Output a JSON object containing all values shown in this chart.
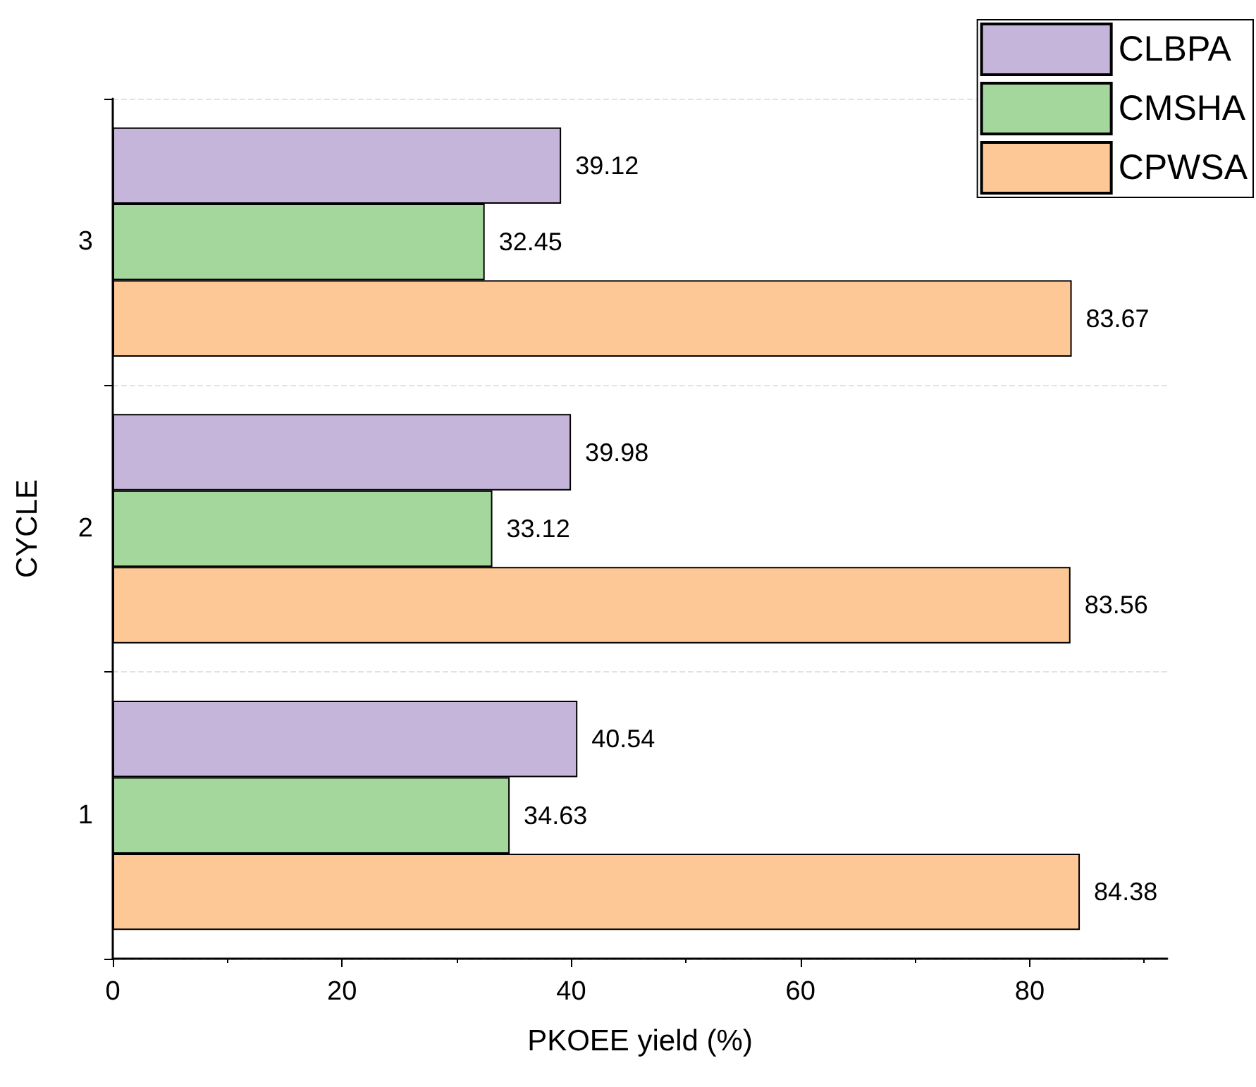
{
  "chart_data": {
    "type": "bar",
    "orientation": "horizontal",
    "xlabel": "PKOEE yield (%)",
    "ylabel": "CYCLE",
    "categories": [
      "3",
      "2",
      "1"
    ],
    "series": [
      {
        "name": "CLBPA",
        "color": "#c5b5da",
        "values": [
          39.12,
          39.98,
          40.54
        ]
      },
      {
        "name": "CMSHA",
        "color": "#a3d79c",
        "values": [
          32.45,
          33.12,
          34.63
        ]
      },
      {
        "name": "CPWSA",
        "color": "#fdc896",
        "values": [
          83.67,
          83.56,
          84.38
        ]
      }
    ],
    "xlim": [
      0,
      92
    ],
    "xticks": [
      0,
      20,
      40,
      60,
      80
    ],
    "grid": "y",
    "legend": "top right",
    "data_labels": true
  }
}
